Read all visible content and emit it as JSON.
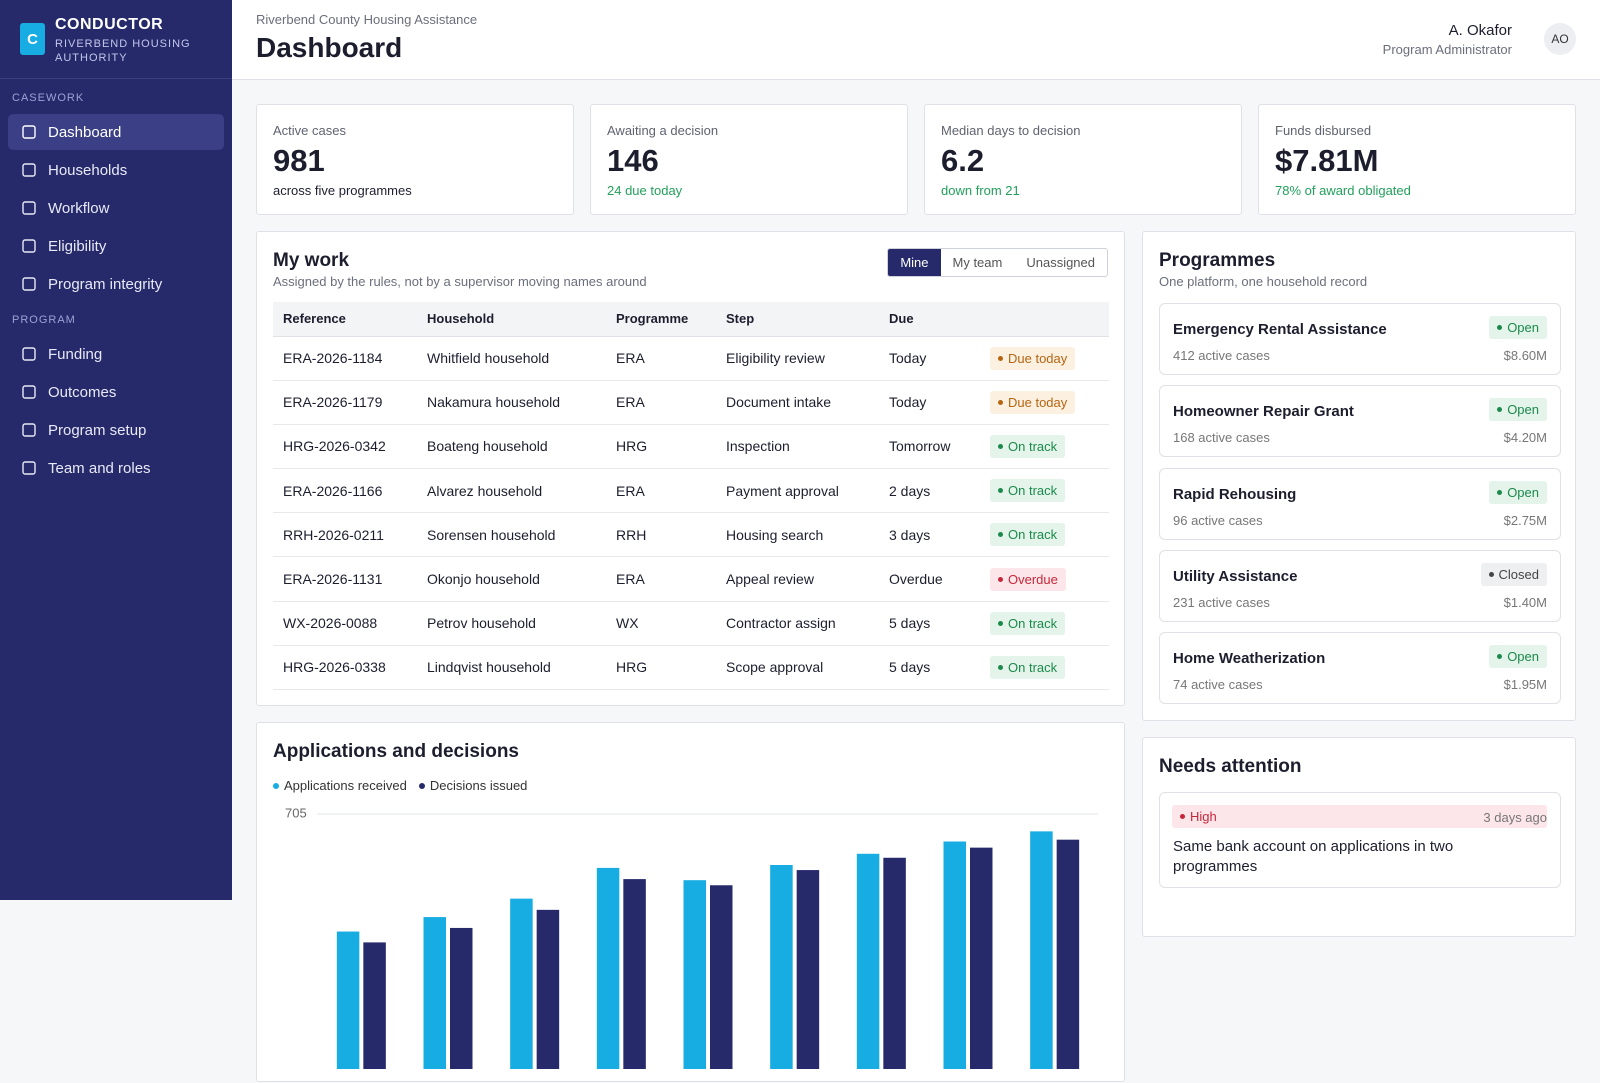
{
  "brand": {
    "logo": "C",
    "name": "CONDUCTOR",
    "subtitle": "RIVERBEND HOUSING AUTHORITY"
  },
  "sidebar": {
    "sections": [
      {
        "label": "CASEWORK",
        "items": [
          {
            "label": "Dashboard",
            "active": true
          },
          {
            "label": "Households"
          },
          {
            "label": "Workflow"
          },
          {
            "label": "Eligibility"
          },
          {
            "label": "Program integrity"
          }
        ]
      },
      {
        "label": "PROGRAM",
        "items": [
          {
            "label": "Funding"
          },
          {
            "label": "Outcomes"
          },
          {
            "label": "Program setup"
          },
          {
            "label": "Team and roles"
          }
        ]
      }
    ]
  },
  "header": {
    "org": "Riverbend County Housing Assistance",
    "title": "Dashboard",
    "user": "A. Okafor",
    "role": "Program Administrator",
    "initials": "AO"
  },
  "kpis": [
    {
      "label": "Active cases",
      "value": "981",
      "note": "across five programmes"
    },
    {
      "label": "Awaiting a decision",
      "value": "146",
      "note": "24 due today"
    },
    {
      "label": "Median days to decision",
      "value": "6.2",
      "note": "down from 21"
    },
    {
      "label": "Funds disbursed",
      "value": "$7.81M",
      "note": "78% of award obligated"
    }
  ],
  "my_work": {
    "title": "My work",
    "subtitle": "Assigned by the rules, not by a supervisor moving names around",
    "tabs": [
      "Mine",
      "My team",
      "Unassigned"
    ],
    "selected_tab": 0,
    "columns": [
      "Reference",
      "Household",
      "Programme",
      "Step",
      "Due"
    ],
    "rows": [
      {
        "cells": [
          "ERA-2026-1184",
          "Whitfield household",
          "ERA",
          "Eligibility review",
          "Today"
        ],
        "status": {
          "label": "Due today",
          "tone": "amber"
        }
      },
      {
        "cells": [
          "ERA-2026-1179",
          "Nakamura household",
          "ERA",
          "Document intake",
          "Today"
        ],
        "status": {
          "label": "Due today",
          "tone": "amber"
        }
      },
      {
        "cells": [
          "HRG-2026-0342",
          "Boateng household",
          "HRG",
          "Inspection",
          "Tomorrow"
        ],
        "status": {
          "label": "On track",
          "tone": "green"
        }
      },
      {
        "cells": [
          "ERA-2026-1166",
          "Alvarez household",
          "ERA",
          "Payment approval",
          "2 days"
        ],
        "status": {
          "label": "On track",
          "tone": "green"
        }
      },
      {
        "cells": [
          "RRH-2026-0211",
          "Sorensen household",
          "RRH",
          "Housing search",
          "3 days"
        ],
        "status": {
          "label": "On track",
          "tone": "green"
        }
      },
      {
        "cells": [
          "ERA-2026-1131",
          "Okonjo household",
          "ERA",
          "Appeal review",
          "Overdue"
        ],
        "status": {
          "label": "Overdue",
          "tone": "red"
        }
      },
      {
        "cells": [
          "WX-2026-0088",
          "Petrov household",
          "WX",
          "Contractor assign",
          "5 days"
        ],
        "status": {
          "label": "On track",
          "tone": "green"
        }
      },
      {
        "cells": [
          "HRG-2026-0338",
          "Lindqvist household",
          "HRG",
          "Scope approval",
          "5 days"
        ],
        "status": {
          "label": "On track",
          "tone": "green"
        }
      }
    ]
  },
  "programmes": {
    "title": "Programmes",
    "subtitle": "One platform, one household record",
    "items": [
      {
        "name": "Emergency Rental Assistance",
        "status": {
          "label": "Open",
          "tone": "green"
        },
        "cases": "412 active cases",
        "amount": "$8.60M"
      },
      {
        "name": "Homeowner Repair Grant",
        "status": {
          "label": "Open",
          "tone": "green"
        },
        "cases": "168 active cases",
        "amount": "$4.20M"
      },
      {
        "name": "Rapid Rehousing",
        "status": {
          "label": "Open",
          "tone": "green"
        },
        "cases": "96 active cases",
        "amount": "$2.75M"
      },
      {
        "name": "Utility Assistance",
        "status": {
          "label": "Closed",
          "tone": "gray"
        },
        "cases": "231 active cases",
        "amount": "$1.40M"
      },
      {
        "name": "Home Weatherization",
        "status": {
          "label": "Open",
          "tone": "green"
        },
        "cases": "74 active cases",
        "amount": "$1.95M"
      }
    ]
  },
  "needs_attention": {
    "title": "Needs attention",
    "items": [
      {
        "severity": {
          "label": "High",
          "tone": "red"
        },
        "age": "3 days ago",
        "text": "Same bank account on applications in two programmes"
      }
    ]
  },
  "chart_data": {
    "type": "bar",
    "title": "Applications and decisions",
    "categories": [
      null,
      null,
      null,
      null,
      null,
      null,
      null,
      null,
      null
    ],
    "series": [
      {
        "name": "Applications received",
        "color": "#17ade3",
        "values": [
          380,
          420,
          471,
          556,
          522,
          564,
          595,
          629,
          657
        ]
      },
      {
        "name": "Decisions issued",
        "color": "#262a6b",
        "values": [
          350,
          390,
          440,
          525,
          508,
          550,
          584,
          612,
          634
        ]
      }
    ],
    "ylim": [
      0,
      705
    ],
    "yticks": [
      705
    ],
    "grid": true
  }
}
